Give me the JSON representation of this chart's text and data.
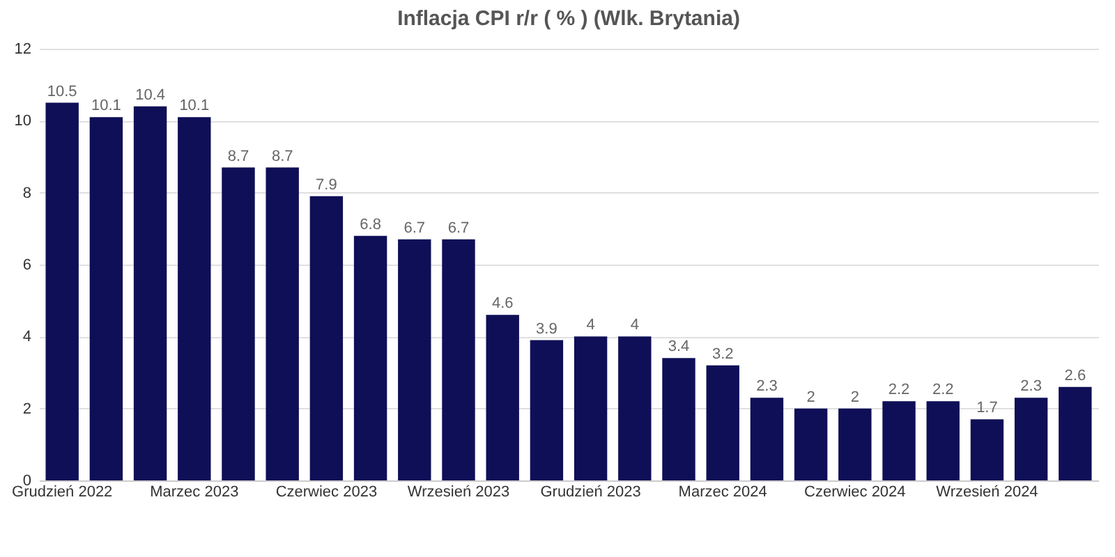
{
  "chart_data": {
    "type": "bar",
    "title": "Inflacja CPI r/r ( % ) (Wlk. Brytania)",
    "categories": [
      "Grudzień 2022",
      null,
      null,
      "Marzec 2023",
      null,
      null,
      "Czerwiec 2023",
      null,
      null,
      "Wrzesień 2023",
      null,
      null,
      "Grudzień 2023",
      null,
      null,
      "Marzec 2024",
      null,
      null,
      "Czerwiec 2024",
      null,
      null,
      "Wrzesień 2024",
      null,
      null
    ],
    "values": [
      10.5,
      10.1,
      10.4,
      10.1,
      8.7,
      8.7,
      7.9,
      6.8,
      6.7,
      6.7,
      4.6,
      3.9,
      4,
      4,
      3.4,
      3.2,
      2.3,
      2,
      2,
      2.2,
      2.2,
      1.7,
      2.3,
      2.6
    ],
    "color": "#0f0f57",
    "ylim": [
      0,
      12
    ],
    "yticks": [
      0,
      2,
      4,
      6,
      8,
      10,
      12
    ],
    "grid": "y",
    "data_labels": true
  }
}
